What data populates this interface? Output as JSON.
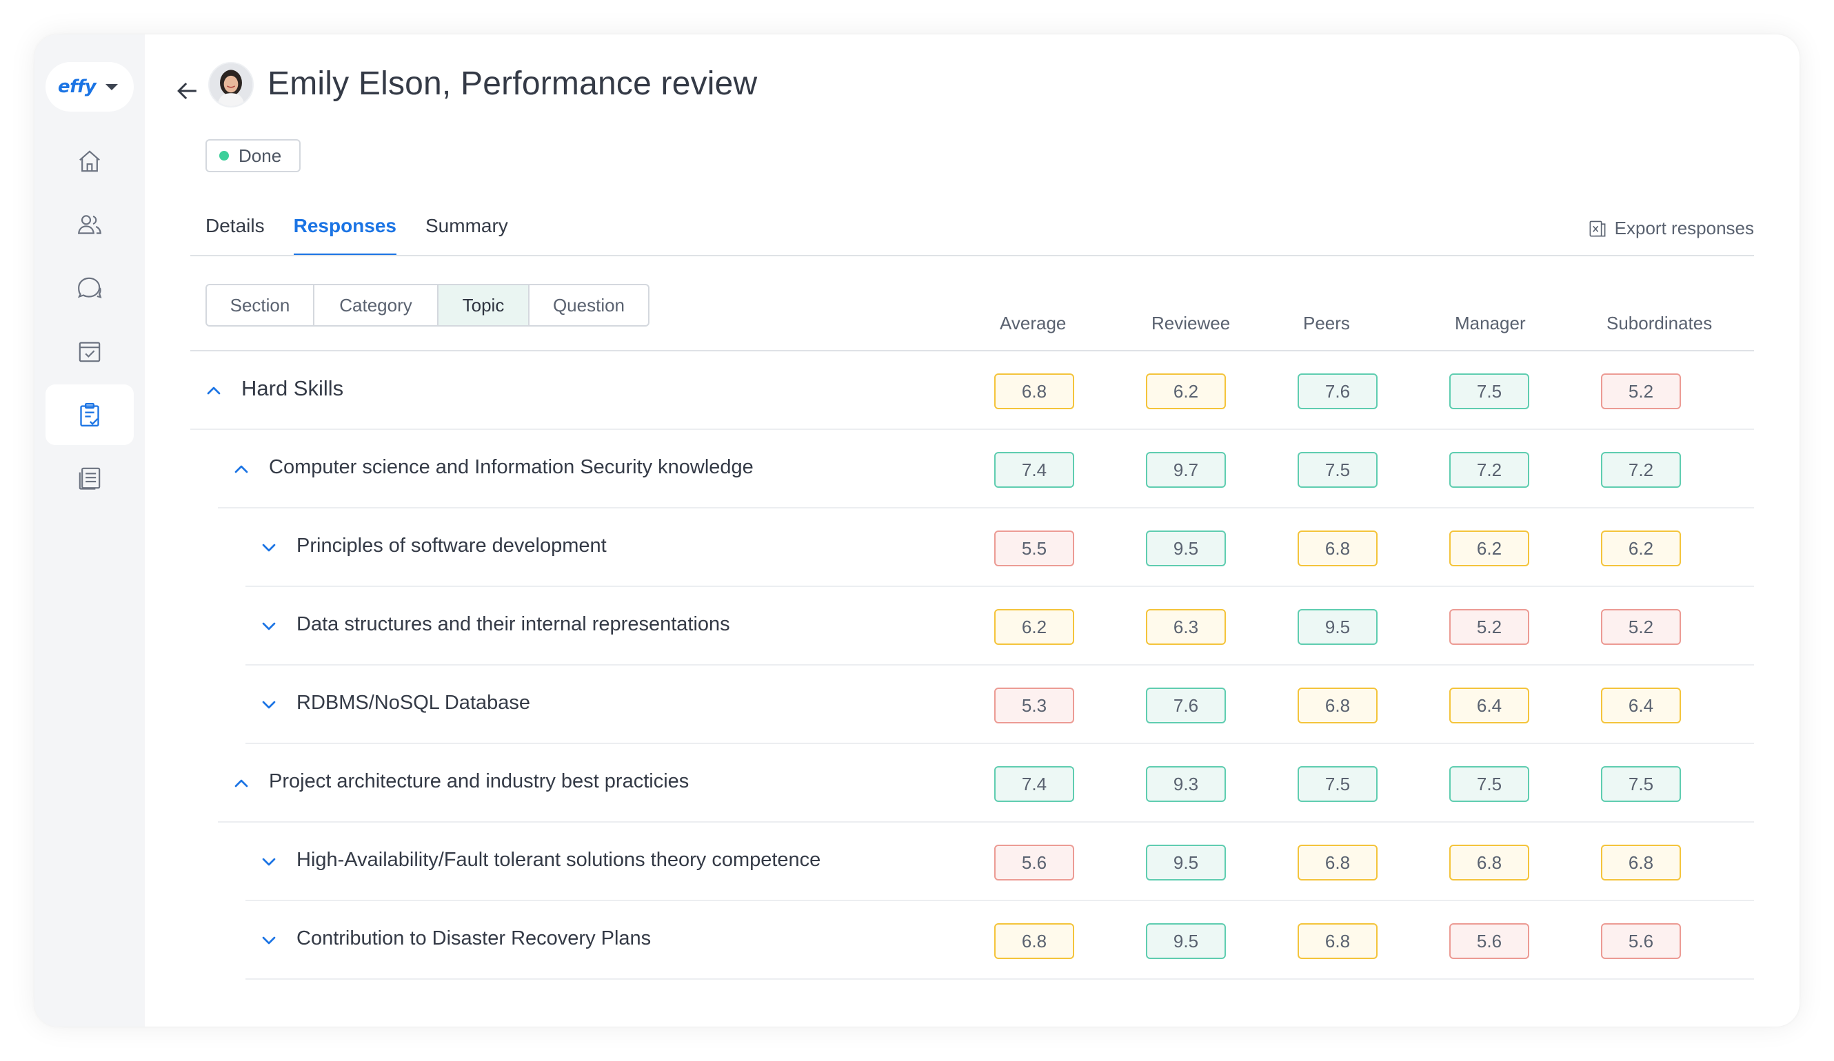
{
  "app": {
    "logo": "effy"
  },
  "sidebar": {
    "items": [
      {
        "icon": "home-icon"
      },
      {
        "icon": "people-icon"
      },
      {
        "icon": "chat-icon"
      },
      {
        "icon": "calendar-check-icon"
      },
      {
        "icon": "clipboard-check-icon",
        "active": true
      },
      {
        "icon": "document-list-icon"
      }
    ]
  },
  "header": {
    "title": "Emily Elson, Performance review",
    "status": "Done"
  },
  "tabs": [
    "Details",
    "Responses",
    "Summary"
  ],
  "active_tab": "Responses",
  "export_label": "Export responses",
  "grouping": {
    "options": [
      "Section",
      "Category",
      "Topic",
      "Question"
    ],
    "selected": "Topic"
  },
  "columns": [
    "Average",
    "Reviewee",
    "Peers",
    "Manager",
    "Subordinates"
  ],
  "colors": {
    "accent": "#1b74e4",
    "status_done": "#3ccf9a",
    "score_green": "#5fcdb0",
    "score_yellow": "#f4c43b",
    "score_red": "#ec9b94"
  },
  "rows": [
    {
      "label": "Hard Skills",
      "level": 0,
      "expanded": true,
      "scores": [
        "6.8",
        "6.2",
        "7.6",
        "7.5",
        "5.2"
      ],
      "ratings": [
        "yellow",
        "yellow",
        "green",
        "green",
        "red"
      ]
    },
    {
      "label": "Computer science and Information Security knowledge",
      "level": 1,
      "expanded": true,
      "scores": [
        "7.4",
        "9.7",
        "7.5",
        "7.2",
        "7.2"
      ],
      "ratings": [
        "green",
        "green",
        "green",
        "green",
        "green"
      ]
    },
    {
      "label": "Principles of software development",
      "level": 2,
      "expanded": false,
      "scores": [
        "5.5",
        "9.5",
        "6.8",
        "6.2",
        "6.2"
      ],
      "ratings": [
        "red",
        "green",
        "yellow",
        "yellow",
        "yellow"
      ]
    },
    {
      "label": "Data structures and their internal representations",
      "level": 2,
      "expanded": false,
      "scores": [
        "6.2",
        "6.3",
        "9.5",
        "5.2",
        "5.2"
      ],
      "ratings": [
        "yellow",
        "yellow",
        "green",
        "red",
        "red"
      ]
    },
    {
      "label": "RDBMS/NoSQL Database",
      "level": 2,
      "expanded": false,
      "scores": [
        "5.3",
        "7.6",
        "6.8",
        "6.4",
        "6.4"
      ],
      "ratings": [
        "red",
        "green",
        "yellow",
        "yellow",
        "yellow"
      ]
    },
    {
      "label": "Project architecture and industry best practicies",
      "level": 1,
      "expanded": true,
      "scores": [
        "7.4",
        "9.3",
        "7.5",
        "7.5",
        "7.5"
      ],
      "ratings": [
        "green",
        "green",
        "green",
        "green",
        "green"
      ]
    },
    {
      "label": "High-Availability/Fault tolerant solutions theory competence",
      "level": 2,
      "expanded": false,
      "scores": [
        "5.6",
        "9.5",
        "6.8",
        "6.8",
        "6.8"
      ],
      "ratings": [
        "red",
        "green",
        "yellow",
        "yellow",
        "yellow"
      ]
    },
    {
      "label": "Contribution to Disaster Recovery Plans",
      "level": 2,
      "expanded": false,
      "scores": [
        "6.8",
        "9.5",
        "6.8",
        "5.6",
        "5.6"
      ],
      "ratings": [
        "yellow",
        "green",
        "yellow",
        "red",
        "red"
      ]
    }
  ]
}
